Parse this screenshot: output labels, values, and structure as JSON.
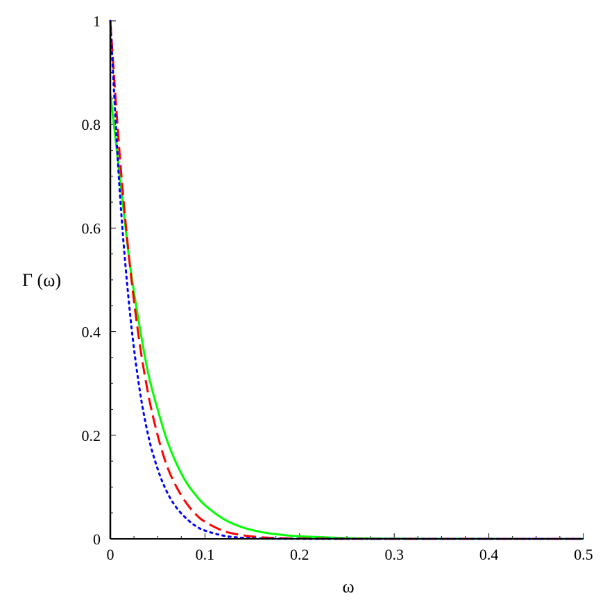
{
  "chart_data": {
    "type": "line",
    "title": "",
    "xlabel": "ω",
    "ylabel": "Γ (ω)",
    "xlim": [
      0,
      0.5
    ],
    "ylim": [
      0,
      1
    ],
    "xticks": [
      0,
      0.1,
      0.2,
      0.3,
      0.4,
      0.5
    ],
    "xtick_labels": [
      "0",
      "0.1",
      "0.2",
      "0.3",
      "0.4",
      "0.5"
    ],
    "yticks": [
      0,
      0.2,
      0.4,
      0.6,
      0.8,
      1
    ],
    "ytick_labels": [
      "0",
      "0.2",
      "0.4",
      "0.6",
      "0.8",
      "1"
    ],
    "grid": false,
    "legend": "none",
    "x": [
      0,
      0.01,
      0.02,
      0.03,
      0.04,
      0.05,
      0.06,
      0.07,
      0.08,
      0.09,
      0.1,
      0.12,
      0.14,
      0.16,
      0.18,
      0.2,
      0.25,
      0.3,
      0.35,
      0.4,
      0.45,
      0.5
    ],
    "series": [
      {
        "color": "#00ff00",
        "dash": "solid",
        "values": [
          0.86,
          0.7,
          0.54,
          0.42,
          0.32,
          0.25,
          0.19,
          0.145,
          0.11,
          0.085,
          0.065,
          0.038,
          0.022,
          0.013,
          0.008,
          0.005,
          0.0015,
          0.0005,
          0.0002,
          0.0001,
          0.0,
          0.0
        ]
      },
      {
        "color": "#ff0000",
        "dash": "dashed",
        "values": [
          1.0,
          0.74,
          0.54,
          0.39,
          0.28,
          0.2,
          0.14,
          0.1,
          0.07,
          0.048,
          0.033,
          0.015,
          0.007,
          0.003,
          0.0015,
          0.0007,
          0.0001,
          0.0,
          0.0,
          0.0,
          0.0,
          0.0
        ]
      },
      {
        "color": "#0000ff",
        "dash": "dotted",
        "values": [
          1.0,
          0.67,
          0.45,
          0.3,
          0.2,
          0.135,
          0.09,
          0.06,
          0.04,
          0.025,
          0.016,
          0.006,
          0.002,
          0.0007,
          0.0002,
          0.0001,
          0.0,
          0.0,
          0.0,
          0.0,
          0.0,
          0.0
        ]
      }
    ]
  }
}
